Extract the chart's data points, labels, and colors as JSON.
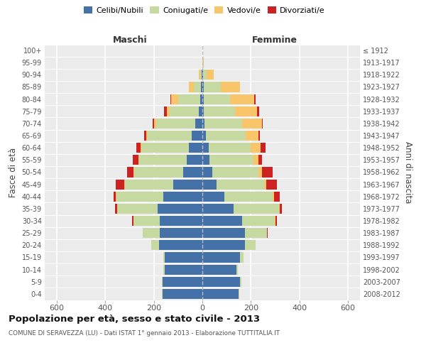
{
  "age_groups": [
    "0-4",
    "5-9",
    "10-14",
    "15-19",
    "20-24",
    "25-29",
    "30-34",
    "35-39",
    "40-44",
    "45-49",
    "50-54",
    "55-59",
    "60-64",
    "65-69",
    "70-74",
    "75-79",
    "80-84",
    "85-89",
    "90-94",
    "95-99",
    "100+"
  ],
  "birth_years": [
    "2008-2012",
    "2003-2007",
    "1998-2002",
    "1993-1997",
    "1988-1992",
    "1983-1987",
    "1978-1982",
    "1973-1977",
    "1968-1972",
    "1963-1967",
    "1958-1962",
    "1953-1957",
    "1948-1952",
    "1943-1947",
    "1938-1942",
    "1933-1937",
    "1928-1932",
    "1923-1927",
    "1918-1922",
    "1913-1917",
    "≤ 1912"
  ],
  "colors": {
    "celibi": "#4472a8",
    "coniugati": "#c5d9a0",
    "vedovi": "#f8c56a",
    "divorziati": "#cc2222"
  },
  "maschi": {
    "celibi": [
      165,
      165,
      155,
      155,
      180,
      175,
      175,
      185,
      160,
      120,
      80,
      65,
      55,
      45,
      30,
      15,
      10,
      5,
      2,
      0,
      0
    ],
    "coniugati": [
      2,
      3,
      5,
      5,
      30,
      70,
      110,
      165,
      195,
      200,
      200,
      195,
      195,
      180,
      160,
      120,
      90,
      30,
      8,
      1,
      0
    ],
    "vedovi": [
      0,
      0,
      0,
      0,
      0,
      0,
      0,
      1,
      2,
      2,
      3,
      3,
      4,
      5,
      10,
      12,
      30,
      20,
      5,
      0,
      0
    ],
    "divorziati": [
      0,
      0,
      0,
      1,
      1,
      2,
      4,
      8,
      10,
      35,
      28,
      25,
      18,
      10,
      5,
      10,
      3,
      0,
      0,
      0,
      0
    ]
  },
  "femmine": {
    "celibi": [
      150,
      155,
      140,
      155,
      175,
      175,
      165,
      130,
      90,
      60,
      40,
      30,
      25,
      15,
      10,
      5,
      5,
      5,
      2,
      0,
      0
    ],
    "coniugati": [
      3,
      5,
      5,
      15,
      45,
      90,
      135,
      185,
      200,
      195,
      190,
      180,
      175,
      165,
      155,
      130,
      110,
      70,
      15,
      2,
      0
    ],
    "vedovi": [
      0,
      0,
      0,
      0,
      0,
      1,
      2,
      3,
      5,
      8,
      15,
      20,
      40,
      50,
      80,
      90,
      100,
      80,
      30,
      3,
      1
    ],
    "divorziati": [
      0,
      0,
      0,
      1,
      1,
      2,
      5,
      10,
      25,
      45,
      45,
      15,
      20,
      8,
      5,
      8,
      5,
      0,
      0,
      0,
      0
    ]
  },
  "xlim": 650,
  "title": "Popolazione per età, sesso e stato civile - 2013",
  "subtitle": "COMUNE DI SERAVEZZA (LU) - Dati ISTAT 1° gennaio 2013 - Elaborazione TUTTITALIA.IT",
  "ylabel": "Fasce di età",
  "ylabel_right": "Anni di nascita",
  "xlabel_maschi": "Maschi",
  "xlabel_femmine": "Femmine",
  "legend_labels": [
    "Celibi/Nubili",
    "Coniugati/e",
    "Vedovi/e",
    "Divorziati/e"
  ],
  "xticks": [
    -600,
    -400,
    -200,
    0,
    200,
    400,
    600
  ]
}
